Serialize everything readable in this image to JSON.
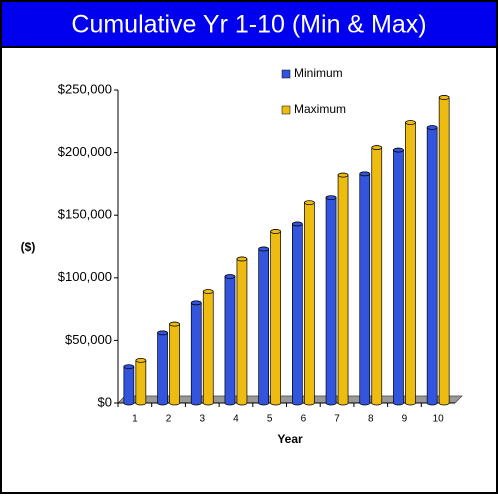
{
  "chart_data": {
    "type": "bar",
    "title": "Cumulative Yr 1-10 (Min & Max)",
    "y_label": "($)",
    "x_label": "Year",
    "categories": [
      "1",
      "2",
      "3",
      "4",
      "5",
      "6",
      "7",
      "8",
      "9",
      "10"
    ],
    "series": [
      {
        "name": "Minimum",
        "color": "#3355dd",
        "values": [
          29000,
          56000,
          80000,
          101000,
          123000,
          143000,
          164000,
          183000,
          202000,
          220000
        ]
      },
      {
        "name": "Maximum",
        "color": "#eebb11",
        "values": [
          34000,
          63000,
          89000,
          115000,
          137000,
          160000,
          182000,
          204000,
          224000,
          244000
        ]
      }
    ],
    "ylim": [
      0,
      250000
    ],
    "yticks": [
      {
        "value": 0,
        "label": "$0"
      },
      {
        "value": 50000,
        "label": "$50,000"
      },
      {
        "value": 100000,
        "label": "$100,000"
      },
      {
        "value": 150000,
        "label": "$150,000"
      },
      {
        "value": 200000,
        "label": "$200,000"
      },
      {
        "value": 250000,
        "label": "$250,000"
      }
    ],
    "grid": false,
    "legend": "top"
  }
}
